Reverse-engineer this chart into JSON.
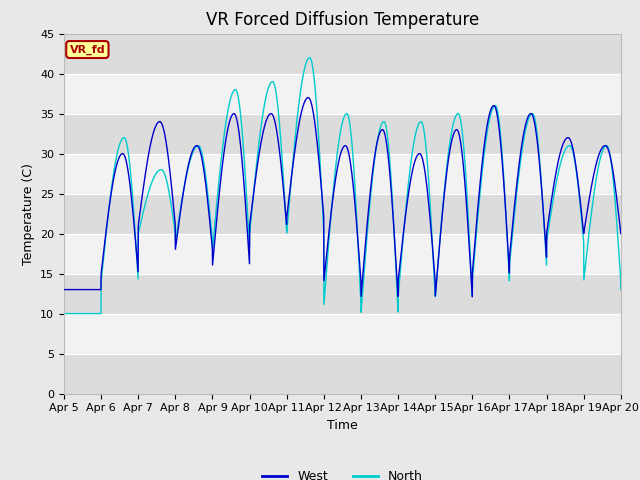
{
  "title": "VR Forced Diffusion Temperature",
  "xlabel": "Time",
  "ylabel": "Temperature (C)",
  "ylim": [
    0,
    45
  ],
  "yticks": [
    0,
    5,
    10,
    15,
    20,
    25,
    30,
    35,
    40,
    45
  ],
  "x_labels": [
    "Apr 5",
    "Apr 6",
    "Apr 7",
    "Apr 8",
    "Apr 9",
    "Apr 10",
    "Apr 11",
    "Apr 12",
    "Apr 13",
    "Apr 14",
    "Apr 15",
    "Apr 16",
    "Apr 17",
    "Apr 18",
    "Apr 19",
    "Apr 20"
  ],
  "west_color": "#0000CD",
  "north_color": "#00CCCC",
  "fig_bg_color": "#E8E8E8",
  "plot_bg_color": "#F2F2F2",
  "band_dark": "#DCDCDC",
  "band_light": "#F2F2F2",
  "legend_west": "West",
  "legend_north": "North",
  "annotation_text": "VR_fd",
  "annotation_bg": "#FFFF99",
  "annotation_border": "#AA0000",
  "title_fontsize": 12,
  "label_fontsize": 9,
  "tick_fontsize": 8,
  "days": 15,
  "west_mins": [
    13,
    15,
    21,
    18,
    16,
    21,
    22,
    14,
    12,
    14,
    12,
    15,
    17,
    20,
    20,
    20
  ],
  "west_maxs": [
    13,
    30,
    34,
    31,
    35,
    35,
    37,
    31,
    33,
    30,
    33,
    36,
    35,
    32,
    31,
    32
  ],
  "north_mins": [
    10,
    14,
    20,
    19,
    18,
    20,
    20,
    11,
    10,
    12,
    12,
    14,
    16,
    19,
    14,
    13
  ],
  "north_maxs": [
    10,
    32,
    28,
    31,
    38,
    39,
    42,
    35,
    34,
    34,
    35,
    36,
    35,
    31,
    31,
    32
  ],
  "west_phase": 0.58,
  "north_phase": 0.62
}
